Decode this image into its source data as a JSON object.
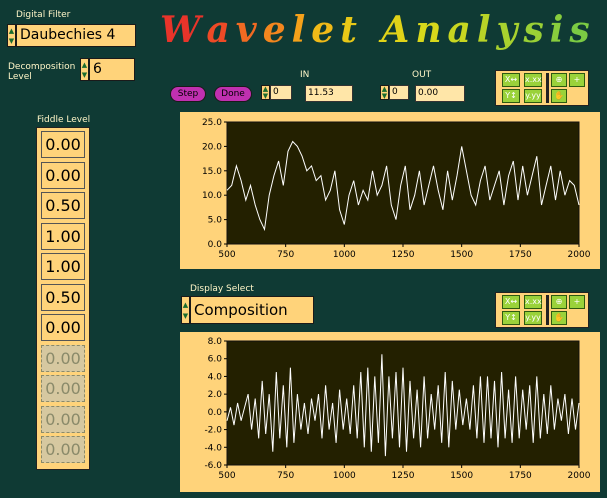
{
  "title": {
    "word1": [
      "W",
      "a",
      "v",
      "e",
      "l",
      "e",
      "t"
    ],
    "word2": [
      "A",
      "n",
      "a",
      "l",
      "y",
      "s",
      "i",
      "s"
    ],
    "colors": [
      "#e8342a",
      "#ee4a26",
      "#f06a22",
      "#f3861e",
      "#f5a11a",
      "#f0ba18",
      "#e8c817",
      "#e0d318",
      "#d8d81b",
      "#c8d620",
      "#b8d327",
      "#a8d12e",
      "#9ad035",
      "#88cd3d",
      "#7bcb43"
    ]
  },
  "digital_filter": {
    "label": "Digital Filter",
    "value": "Daubechies 4"
  },
  "decomposition": {
    "label": "Decomposition Level",
    "value": "6"
  },
  "buttons": {
    "step": "Step",
    "done": "Done"
  },
  "in_control": {
    "label": "IN",
    "index": "0",
    "value": "11.53"
  },
  "out_control": {
    "label": "OUT",
    "index": "0",
    "value": "0.00"
  },
  "fiddle": {
    "label": "Fiddle Level",
    "values": [
      "0.00",
      "0.00",
      "0.50",
      "1.00",
      "1.00",
      "0.50",
      "0.00",
      "0.00",
      "0.00",
      "0.00",
      "0.00"
    ],
    "active_count": 7
  },
  "display_select": {
    "label": "Display Select",
    "value": "Composition"
  },
  "chart_data": [
    {
      "type": "line",
      "x_ticks": [
        "500",
        "750",
        "1000",
        "1250",
        "1500",
        "1750",
        "2000"
      ],
      "y_ticks": [
        "25.0",
        "20.0",
        "15.0",
        "10.0",
        "5.0",
        "0.0"
      ],
      "xlim": [
        500,
        2000
      ],
      "ylim": [
        0,
        25
      ],
      "series": [
        {
          "x": [
            500,
            520,
            540,
            560,
            580,
            600,
            620,
            640,
            660,
            680,
            700,
            720,
            740,
            760,
            780,
            800,
            820,
            840,
            860,
            880,
            900,
            920,
            940,
            960,
            980,
            1000,
            1020,
            1040,
            1060,
            1080,
            1100,
            1120,
            1140,
            1160,
            1180,
            1200,
            1220,
            1240,
            1260,
            1280,
            1300,
            1320,
            1340,
            1360,
            1380,
            1400,
            1420,
            1440,
            1460,
            1480,
            1500,
            1520,
            1540,
            1560,
            1580,
            1600,
            1620,
            1640,
            1660,
            1680,
            1700,
            1720,
            1740,
            1760,
            1780,
            1800,
            1820,
            1840,
            1860,
            1880,
            1900,
            1920,
            1940,
            1960,
            1980,
            2000
          ],
          "y": [
            11,
            12,
            16,
            13,
            9,
            12,
            8,
            5,
            3,
            10,
            14,
            17,
            12,
            19,
            21,
            20,
            18,
            15,
            16,
            13,
            14,
            9,
            11,
            15,
            7,
            4,
            10,
            13,
            8,
            11,
            9,
            15,
            10,
            12,
            16,
            8,
            5,
            12,
            16,
            7,
            10,
            15,
            8,
            12,
            16,
            11,
            7,
            15,
            9,
            14,
            20,
            15,
            10,
            8,
            13,
            16,
            9,
            12,
            15,
            8,
            14,
            17,
            9,
            16,
            10,
            14,
            18,
            8,
            12,
            16,
            9,
            15,
            10,
            13,
            12,
            8
          ]
        }
      ]
    },
    {
      "type": "line",
      "x_ticks": [
        "500",
        "750",
        "1000",
        "1250",
        "1500",
        "1750",
        "2000"
      ],
      "y_ticks": [
        "8.0",
        "6.0",
        "4.0",
        "2.0",
        "0.0",
        "-2.0",
        "-4.0",
        "-6.0"
      ],
      "xlim": [
        500,
        2000
      ],
      "ylim": [
        -6,
        8
      ],
      "series": [
        {
          "x": [
            500,
            515,
            530,
            545,
            560,
            575,
            590,
            605,
            620,
            635,
            650,
            665,
            680,
            695,
            710,
            725,
            740,
            755,
            770,
            785,
            800,
            815,
            830,
            845,
            860,
            875,
            890,
            905,
            920,
            935,
            950,
            965,
            980,
            995,
            1010,
            1025,
            1040,
            1055,
            1070,
            1085,
            1100,
            1115,
            1130,
            1145,
            1160,
            1175,
            1190,
            1205,
            1220,
            1235,
            1250,
            1265,
            1280,
            1295,
            1310,
            1325,
            1340,
            1355,
            1370,
            1385,
            1400,
            1415,
            1430,
            1445,
            1460,
            1475,
            1490,
            1505,
            1520,
            1535,
            1550,
            1565,
            1580,
            1595,
            1610,
            1625,
            1640,
            1655,
            1670,
            1685,
            1700,
            1715,
            1730,
            1745,
            1760,
            1775,
            1790,
            1805,
            1820,
            1835,
            1850,
            1865,
            1880,
            1895,
            1910,
            1925,
            1940,
            1955,
            1970,
            1985,
            2000
          ],
          "y": [
            -1,
            0.5,
            -1.5,
            1,
            -1,
            0.5,
            2,
            -2,
            1.5,
            -3,
            3.5,
            -2.5,
            2,
            -4.5,
            4.5,
            -3,
            3,
            -4,
            5,
            -3.5,
            2,
            -2,
            1,
            -2.5,
            1.5,
            -1,
            2,
            -3,
            3,
            -2,
            1,
            -3.5,
            2.5,
            -2,
            1.5,
            -2.5,
            3,
            -3,
            4.5,
            -4,
            5,
            -4.5,
            4,
            -3.5,
            6.5,
            -5,
            4,
            -3,
            4.5,
            -4,
            5,
            -4.5,
            3.5,
            -3,
            2.5,
            -4,
            4,
            -3,
            2,
            -2,
            3,
            -3.5,
            4.5,
            -4,
            3.5,
            -2,
            2.5,
            -1.5,
            1.5,
            -2,
            3,
            -3,
            4,
            -3.5,
            4,
            -3,
            3.5,
            -4,
            4.5,
            -3,
            2.5,
            -3.5,
            4,
            -3,
            2.5,
            -2,
            3,
            -3.5,
            4,
            -3,
            2,
            -2.5,
            3,
            -2,
            1.5,
            -1,
            2,
            -2.5,
            1.5,
            -2,
            1
          ]
        }
      ]
    }
  ]
}
